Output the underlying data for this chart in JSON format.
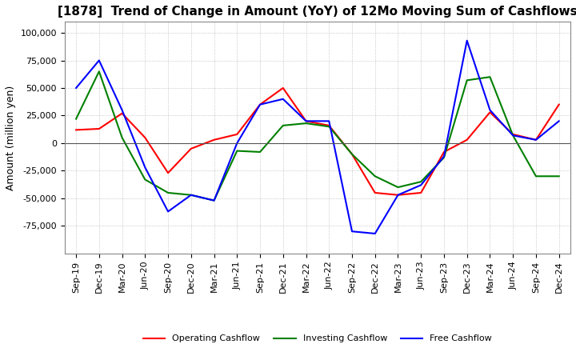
{
  "title": "[1878]  Trend of Change in Amount (YoY) of 12Mo Moving Sum of Cashflows",
  "ylabel": "Amount (million yen)",
  "x_labels": [
    "Sep-19",
    "Dec-19",
    "Mar-20",
    "Jun-20",
    "Sep-20",
    "Dec-20",
    "Mar-21",
    "Jun-21",
    "Sep-21",
    "Dec-21",
    "Mar-22",
    "Jun-22",
    "Sep-22",
    "Dec-22",
    "Mar-23",
    "Jun-23",
    "Sep-23",
    "Dec-23",
    "Mar-24",
    "Jun-24",
    "Sep-24",
    "Dec-24"
  ],
  "operating": [
    12000,
    13000,
    27000,
    5000,
    -27000,
    -5000,
    3000,
    8000,
    35000,
    50000,
    20000,
    16000,
    -10000,
    -45000,
    -47000,
    -45000,
    -8000,
    3000,
    28000,
    8000,
    3000,
    35000
  ],
  "investing": [
    22000,
    65000,
    5000,
    -33000,
    -45000,
    -47000,
    -52000,
    -7000,
    -8000,
    16000,
    18000,
    15000,
    -10000,
    -30000,
    -40000,
    -35000,
    -13000,
    57000,
    60000,
    7000,
    -30000,
    -30000
  ],
  "free": [
    50000,
    75000,
    30000,
    -22000,
    -62000,
    -47000,
    -52000,
    0,
    35000,
    40000,
    20000,
    20000,
    -80000,
    -82000,
    -47000,
    -38000,
    -12000,
    93000,
    30000,
    7000,
    3000,
    20000
  ],
  "ylim": [
    -100000,
    110000
  ],
  "yticks": [
    -75000,
    -50000,
    -25000,
    0,
    25000,
    50000,
    75000,
    100000
  ],
  "operating_color": "#ff0000",
  "investing_color": "#008000",
  "free_color": "#0000ff",
  "bg_color": "#ffffff",
  "plot_bg_color": "#ffffff",
  "grid_color": "#aaaaaa",
  "title_fontsize": 11,
  "label_fontsize": 9,
  "tick_fontsize": 8
}
